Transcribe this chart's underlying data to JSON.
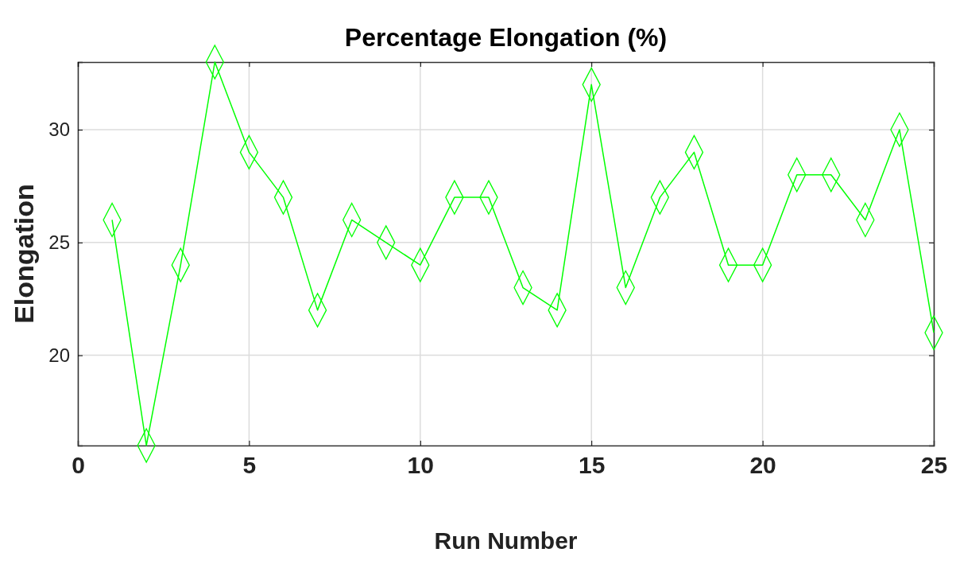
{
  "chart_data": {
    "type": "line",
    "title": "Percentage Elongation (%)",
    "xlabel": "Run Number",
    "ylabel": "Elongation",
    "x": [
      1,
      2,
      3,
      4,
      5,
      6,
      7,
      8,
      9,
      10,
      11,
      12,
      13,
      14,
      15,
      16,
      17,
      18,
      19,
      20,
      21,
      22,
      23,
      24,
      25
    ],
    "series": [
      {
        "color": "#00ff00",
        "values": [
          26,
          16,
          24,
          33,
          29,
          27,
          22,
          26,
          25,
          24,
          27,
          27,
          23,
          22,
          32,
          23,
          27,
          29,
          24,
          24,
          28,
          28,
          26,
          30,
          21
        ]
      }
    ],
    "xlim": [
      0,
      25
    ],
    "xticks": [
      0,
      5,
      10,
      15,
      20,
      25
    ],
    "ylim": [
      16,
      33
    ],
    "yticks": [
      20,
      25,
      30
    ],
    "grid": true,
    "marker": "diamond",
    "line_style": "solid"
  }
}
